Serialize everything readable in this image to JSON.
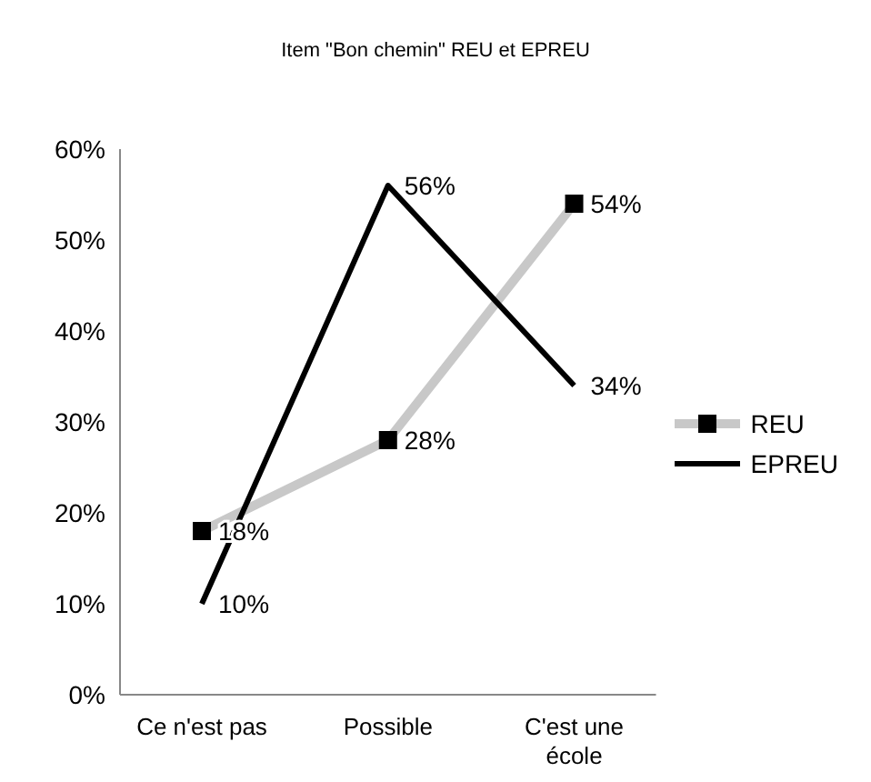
{
  "chart_data": {
    "type": "line",
    "title": "Item \"Bon chemin\" REU et EPREU",
    "categories": [
      "Ce n'est pas",
      "Possible",
      "C'est une école"
    ],
    "series": [
      {
        "name": "REU",
        "color": "#c8c8c8",
        "values": [
          18,
          28,
          54
        ],
        "value_labels": [
          "18%",
          "28%",
          "54%"
        ],
        "marker": "square"
      },
      {
        "name": "EPREU",
        "color": "#000000",
        "values": [
          10,
          56,
          34
        ],
        "value_labels": [
          "10%",
          "56%",
          "34%"
        ],
        "marker": "none"
      }
    ],
    "ylim": [
      0,
      60
    ],
    "yticks": [
      {
        "value": 0,
        "label": "0%"
      },
      {
        "value": 10,
        "label": "10%"
      },
      {
        "value": 20,
        "label": "20%"
      },
      {
        "value": 30,
        "label": "30%"
      },
      {
        "value": 40,
        "label": "40%"
      },
      {
        "value": 50,
        "label": "50%"
      },
      {
        "value": 60,
        "label": "60%"
      }
    ],
    "grid": false,
    "legend": "right",
    "line_style": "solid"
  }
}
